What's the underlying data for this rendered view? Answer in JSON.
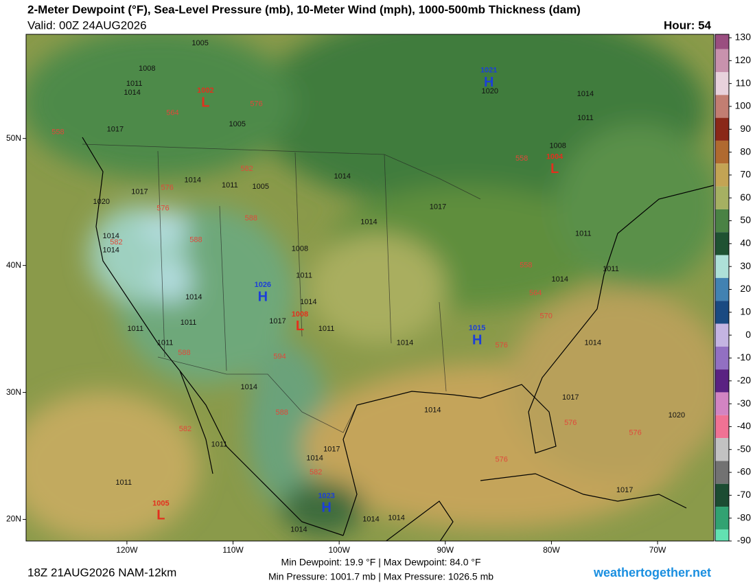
{
  "header": {
    "title": "2-Meter Dewpoint (°F), Sea-Level Pressure (mb), 10-Meter Wind (mph), 1000-500mb Thickness (dam)",
    "valid": "Valid: 00Z 24AUG2026",
    "hour": "Hour: 54"
  },
  "map": {
    "lonlim": [
      -129.5,
      -64.7
    ],
    "latlim": [
      18.3,
      58.2
    ],
    "lat_ticks": [
      {
        "value": 50,
        "label": "50N"
      },
      {
        "value": 40,
        "label": "40N"
      },
      {
        "value": 30,
        "label": "30N"
      },
      {
        "value": 20,
        "label": "20N"
      }
    ],
    "lon_ticks": [
      {
        "value": -120,
        "label": "120W"
      },
      {
        "value": -110,
        "label": "110W"
      },
      {
        "value": -100,
        "label": "100W"
      },
      {
        "value": -90,
        "label": "90W"
      },
      {
        "value": -80,
        "label": "80W"
      },
      {
        "value": -70,
        "label": "70W"
      }
    ],
    "center_colors": {
      "H": "#1c3fd8",
      "L": "#e2301e"
    },
    "isobar_color": "#111111",
    "thickness_color": "#e0483a",
    "centers": [
      {
        "letter": "L",
        "value": 1002,
        "lon": -112.6,
        "lat": 53.1
      },
      {
        "letter": "H",
        "value": 1021,
        "lon": -85.9,
        "lat": 54.7
      },
      {
        "letter": "L",
        "value": 1004,
        "lon": -79.7,
        "lat": 47.9
      },
      {
        "letter": "H",
        "value": 1026,
        "lon": -107.2,
        "lat": 37.8
      },
      {
        "letter": "L",
        "value": 1008,
        "lon": -103.7,
        "lat": 35.5
      },
      {
        "letter": "H",
        "value": 1015,
        "lon": -87.0,
        "lat": 34.4
      },
      {
        "letter": "H",
        "value": 1023,
        "lon": -101.2,
        "lat": 21.2
      },
      {
        "letter": "L",
        "value": 1005,
        "lon": -116.8,
        "lat": 20.6
      }
    ],
    "isobar_labels": [
      {
        "value": 1005,
        "lon": -113.1,
        "lat": 57.5
      },
      {
        "value": 1008,
        "lon": -118.1,
        "lat": 55.5
      },
      {
        "value": 1011,
        "lon": -119.3,
        "lat": 54.3
      },
      {
        "value": 1014,
        "lon": -119.5,
        "lat": 53.6
      },
      {
        "value": 1017,
        "lon": -121.1,
        "lat": 50.7
      },
      {
        "value": 1005,
        "lon": -109.6,
        "lat": 51.1
      },
      {
        "value": 1014,
        "lon": -113.8,
        "lat": 46.7
      },
      {
        "value": 1011,
        "lon": -110.3,
        "lat": 46.3
      },
      {
        "value": 1005,
        "lon": -107.4,
        "lat": 46.2
      },
      {
        "value": 1017,
        "lon": -118.8,
        "lat": 45.8
      },
      {
        "value": 1020,
        "lon": -122.4,
        "lat": 45.0
      },
      {
        "value": 1014,
        "lon": -121.5,
        "lat": 42.3
      },
      {
        "value": 1014,
        "lon": -121.5,
        "lat": 41.2
      },
      {
        "value": 1014,
        "lon": -99.7,
        "lat": 47.0
      },
      {
        "value": 1017,
        "lon": -90.7,
        "lat": 44.6
      },
      {
        "value": 1014,
        "lon": -97.2,
        "lat": 43.4
      },
      {
        "value": 1008,
        "lon": -103.7,
        "lat": 41.3
      },
      {
        "value": 1011,
        "lon": -103.3,
        "lat": 39.2
      },
      {
        "value": 1014,
        "lon": -113.7,
        "lat": 37.5
      },
      {
        "value": 1014,
        "lon": -102.9,
        "lat": 37.1
      },
      {
        "value": 1011,
        "lon": -114.2,
        "lat": 35.5
      },
      {
        "value": 1017,
        "lon": -105.8,
        "lat": 35.6
      },
      {
        "value": 1011,
        "lon": -101.2,
        "lat": 35.0
      },
      {
        "value": 1011,
        "lon": -119.2,
        "lat": 35.0
      },
      {
        "value": 1011,
        "lon": -116.4,
        "lat": 33.9
      },
      {
        "value": 1014,
        "lon": -93.8,
        "lat": 33.9
      },
      {
        "value": 1014,
        "lon": -108.5,
        "lat": 30.4
      },
      {
        "value": 1014,
        "lon": -91.2,
        "lat": 28.6
      },
      {
        "value": 1014,
        "lon": -102.3,
        "lat": 24.8
      },
      {
        "value": 1017,
        "lon": -100.7,
        "lat": 25.5
      },
      {
        "value": 1011,
        "lon": -111.3,
        "lat": 25.9
      },
      {
        "value": 1011,
        "lon": -120.3,
        "lat": 22.9
      },
      {
        "value": 1014,
        "lon": -94.6,
        "lat": 20.1
      },
      {
        "value": 1014,
        "lon": -97.0,
        "lat": 20.0
      },
      {
        "value": 1014,
        "lon": -103.8,
        "lat": 19.2
      },
      {
        "value": 1020,
        "lon": -85.8,
        "lat": 53.7
      },
      {
        "value": 1014,
        "lon": -76.8,
        "lat": 53.5
      },
      {
        "value": 1011,
        "lon": -76.8,
        "lat": 51.6
      },
      {
        "value": 1008,
        "lon": -79.4,
        "lat": 49.4
      },
      {
        "value": 1011,
        "lon": -77.0,
        "lat": 42.5
      },
      {
        "value": 1014,
        "lon": -79.2,
        "lat": 38.9
      },
      {
        "value": 1011,
        "lon": -74.4,
        "lat": 39.7
      },
      {
        "value": 1014,
        "lon": -76.1,
        "lat": 33.9
      },
      {
        "value": 1017,
        "lon": -78.2,
        "lat": 29.6
      },
      {
        "value": 1020,
        "lon": -68.2,
        "lat": 28.2
      },
      {
        "value": 1017,
        "lon": -73.1,
        "lat": 22.3
      }
    ],
    "thickness_labels": [
      {
        "value": 558,
        "lon": -126.5,
        "lat": 50.5
      },
      {
        "value": 564,
        "lon": -115.7,
        "lat": 52.0
      },
      {
        "value": 576,
        "lon": -107.8,
        "lat": 52.7
      },
      {
        "value": 582,
        "lon": -108.7,
        "lat": 47.6
      },
      {
        "value": 576,
        "lon": -116.2,
        "lat": 46.1
      },
      {
        "value": 576,
        "lon": -116.6,
        "lat": 44.5
      },
      {
        "value": 582,
        "lon": -121.0,
        "lat": 41.8
      },
      {
        "value": 588,
        "lon": -108.3,
        "lat": 43.7
      },
      {
        "value": 588,
        "lon": -113.5,
        "lat": 42.0
      },
      {
        "value": 588,
        "lon": -114.6,
        "lat": 33.1
      },
      {
        "value": 594,
        "lon": -105.6,
        "lat": 32.8
      },
      {
        "value": 588,
        "lon": -105.4,
        "lat": 28.4
      },
      {
        "value": 582,
        "lon": -114.5,
        "lat": 27.1
      },
      {
        "value": 582,
        "lon": -102.2,
        "lat": 23.7
      },
      {
        "value": 558,
        "lon": -82.8,
        "lat": 48.4
      },
      {
        "value": 558,
        "lon": -82.4,
        "lat": 40.0
      },
      {
        "value": 564,
        "lon": -81.5,
        "lat": 37.8
      },
      {
        "value": 570,
        "lon": -80.5,
        "lat": 36.0
      },
      {
        "value": 576,
        "lon": -84.7,
        "lat": 33.7
      },
      {
        "value": 576,
        "lon": -78.2,
        "lat": 27.6
      },
      {
        "value": 576,
        "lon": -72.1,
        "lat": 26.8
      },
      {
        "value": 576,
        "lon": -84.7,
        "lat": 24.7
      }
    ]
  },
  "colorbar": {
    "lim": [
      -90,
      130
    ],
    "ticks": [
      130,
      120,
      110,
      100,
      90,
      80,
      70,
      60,
      50,
      40,
      30,
      20,
      10,
      0,
      -10,
      -20,
      -30,
      -40,
      -50,
      -60,
      -70,
      -80,
      -90
    ],
    "colors": [
      "#9a4e80",
      "#c892ad",
      "#e8d2dc",
      "#c27e72",
      "#8a2818",
      "#b06a30",
      "#c3a454",
      "#a6b062",
      "#4a8244",
      "#1f5232",
      "#aee0d8",
      "#4282b2",
      "#1a4a82",
      "#c4b4e2",
      "#9270c2",
      "#5a2282",
      "#d284c2",
      "#f07294",
      "#c2c2c2",
      "#727272",
      "#1c4c32",
      "#32a272",
      "#62e2b2"
    ]
  },
  "footer": {
    "run": "18Z 21AUG2026 NAM-12km",
    "dewpoint": "Min Dewpoint:  19.9 °F | Max Dewpoint:  84.0 °F",
    "pressure": "Min Pressure: 1001.7 mb | Max Pressure: 1026.5 mb",
    "site": "weathertogether.net"
  }
}
